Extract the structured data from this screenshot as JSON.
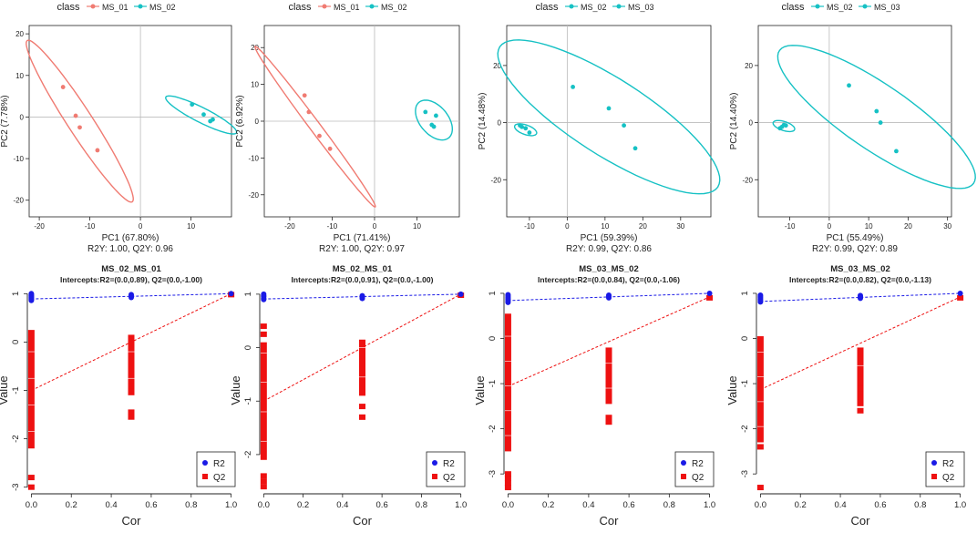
{
  "colors": {
    "ms01": "#f07b72",
    "ms03": "#16c1c4",
    "r2": "#1a1ae6",
    "q2": "#ee1111",
    "axis": "#222222",
    "ref": "#bbbbbb"
  },
  "chart_data": [
    {
      "type": "scatter",
      "panel": "pca",
      "legend_title": "class",
      "legend": [
        "MS_01",
        "MS_02"
      ],
      "xlabel": "PC1 (67.80%)",
      "ylabel": "PC2 (7.78%)",
      "stats": "R2Y: 1.00, Q2Y: 0.96",
      "xlim": [
        -22,
        18
      ],
      "ylim": [
        -24,
        22
      ],
      "xticks": [
        -20,
        -10,
        0,
        10
      ],
      "yticks": [
        -20,
        -10,
        0,
        10,
        20
      ],
      "series": [
        {
          "name": "MS_01",
          "points": [
            [
              -15.3,
              7.2
            ],
            [
              -12.8,
              0.3
            ],
            [
              -12.0,
              -2.5
            ],
            [
              -8.5,
              -8.0
            ]
          ],
          "ellipse": {
            "cx": -12,
            "cy": -1,
            "a": 22,
            "b": 2.6,
            "angle": -62
          }
        },
        {
          "name": "MS_02",
          "points": [
            [
              10.2,
              3.0
            ],
            [
              12.5,
              0.6
            ],
            [
              14.3,
              -0.6
            ],
            [
              13.8,
              -1.0
            ]
          ],
          "ellipse": {
            "cx": 12,
            "cy": 0.5,
            "a": 8.2,
            "b": 1.7,
            "angle": -32
          }
        }
      ]
    },
    {
      "type": "scatter",
      "panel": "pca",
      "legend_title": "class",
      "legend": [
        "MS_01",
        "MS_02"
      ],
      "xlabel": "PC1 (71.41%)",
      "ylabel": "PC2 (6.92%)",
      "stats": "R2Y: 1.00, Q2Y: 0.97",
      "xlim": [
        -26,
        20
      ],
      "ylim": [
        -26,
        26
      ],
      "xticks": [
        -20,
        -10,
        0,
        10
      ],
      "yticks": [
        -20,
        -10,
        0,
        10,
        20
      ],
      "series": [
        {
          "name": "MS_01",
          "points": [
            [
              -16.5,
              7.0
            ],
            [
              -15.5,
              2.5
            ],
            [
              -13.0,
              -4.0
            ],
            [
              -10.5,
              -7.5
            ]
          ],
          "ellipse": {
            "cx": -14,
            "cy": -1.5,
            "a": 26,
            "b": 1.3,
            "angle": -57
          }
        },
        {
          "name": "MS_02",
          "points": [
            [
              12.0,
              2.5
            ],
            [
              14.5,
              1.5
            ],
            [
              13.5,
              -1.0
            ],
            [
              14.0,
              -1.5
            ]
          ],
          "ellipse": {
            "cx": 14,
            "cy": 0.3,
            "a": 6,
            "b": 3.5,
            "angle": -58
          }
        }
      ]
    },
    {
      "type": "scatter",
      "panel": "pca",
      "legend_title": "class",
      "legend": [
        "MS_02",
        "MS_03"
      ],
      "xlabel": "PC1 (59.39%)",
      "ylabel": "PC2 (14.48%)",
      "stats": "R2Y: 0.99, Q2Y: 0.86",
      "xlim": [
        -16,
        38
      ],
      "ylim": [
        -33,
        34
      ],
      "xticks": [
        -10,
        0,
        10,
        20,
        30
      ],
      "yticks": [
        -20,
        0,
        20
      ],
      "series": [
        {
          "name": "MS_02",
          "points": [
            [
              -12.5,
              -1.0
            ],
            [
              -11.0,
              -2.0
            ],
            [
              -10.0,
              -3.5
            ],
            [
              -12.0,
              -1.5
            ]
          ],
          "ellipse": {
            "cx": -11,
            "cy": -2.5,
            "a": 3.2,
            "b": 1.6,
            "angle": -28
          }
        },
        {
          "name": "MS_03",
          "points": [
            [
              1.5,
              12.5
            ],
            [
              11.0,
              5.0
            ],
            [
              15.0,
              -1.0
            ],
            [
              18.0,
              -9.0
            ]
          ],
          "ellipse": {
            "cx": 11,
            "cy": 2,
            "a": 38,
            "b": 12,
            "angle": -42
          }
        }
      ]
    },
    {
      "type": "scatter",
      "panel": "pca",
      "legend_title": "class",
      "legend": [
        "MS_02",
        "MS_03"
      ],
      "xlabel": "PC1 (55.49%)",
      "ylabel": "PC2 (14.40%)",
      "stats": "R2Y: 0.99, Q2Y: 0.89",
      "xlim": [
        -18,
        31
      ],
      "ylim": [
        -33,
        34
      ],
      "xticks": [
        -10,
        0,
        10,
        20,
        30
      ],
      "yticks": [
        -20,
        0,
        20
      ],
      "series": [
        {
          "name": "MS_02",
          "points": [
            [
              -12.5,
              -2.0
            ],
            [
              -11.0,
              -1.0
            ],
            [
              -12.0,
              -1.5
            ],
            [
              -11.5,
              -0.8
            ]
          ],
          "ellipse": {
            "cx": -11.5,
            "cy": -1.2,
            "a": 3.0,
            "b": 1.5,
            "angle": -28
          }
        },
        {
          "name": "MS_03",
          "points": [
            [
              5.0,
              13.0
            ],
            [
              12.0,
              4.0
            ],
            [
              13.0,
              0.0
            ],
            [
              17.0,
              -10.0
            ]
          ],
          "ellipse": {
            "cx": 12,
            "cy": 2,
            "a": 34,
            "b": 10,
            "angle": -45
          }
        }
      ]
    },
    {
      "type": "scatter",
      "panel": "perm",
      "title": "MS_02_MS_01",
      "subtitle": "Intercepts:R2=(0.0,0.89), Q2=(0.0,-1.00)",
      "xlabel": "Cor",
      "ylabel": "Value",
      "legend": [
        "R2",
        "Q2"
      ],
      "xlim": [
        -0.02,
        1.02
      ],
      "ylim": [
        -3.1,
        1.1
      ],
      "xticks": [
        0,
        0.2,
        0.4,
        0.6,
        0.8,
        1
      ],
      "yticks": [
        -3,
        -2,
        -1,
        0,
        1
      ],
      "r2_line": [
        [
          0,
          0.89
        ],
        [
          1,
          1
        ]
      ],
      "q2_line": [
        [
          0,
          -1.0
        ],
        [
          1,
          1
        ]
      ],
      "r2_points": [
        [
          0,
          1.0
        ],
        [
          0,
          0.98
        ],
        [
          0,
          0.96
        ],
        [
          0,
          0.95
        ],
        [
          0,
          0.93
        ],
        [
          0,
          0.92
        ],
        [
          0,
          0.9
        ],
        [
          0,
          0.88
        ],
        [
          0,
          0.86
        ],
        [
          0.5,
          0.98
        ],
        [
          0.5,
          0.95
        ],
        [
          0.5,
          0.92
        ],
        [
          1,
          1.0
        ]
      ],
      "q2_bar0": [
        -2.2,
        0.25
      ],
      "q2_bar05": [
        -1.1,
        0.15
      ],
      "q2_points": [
        [
          0,
          -2.8
        ],
        [
          0,
          -3.0
        ],
        [
          0.5,
          -1.45
        ],
        [
          0.5,
          -1.55
        ],
        [
          0.5,
          -0.9
        ],
        [
          1,
          0.98
        ]
      ]
    },
    {
      "type": "scatter",
      "panel": "perm",
      "title": "MS_02_MS_01",
      "subtitle": "Intercepts:R2=(0.0,0.91), Q2=(0.0,-1.00)",
      "xlabel": "Cor",
      "ylabel": "Value",
      "legend": [
        "R2",
        "Q2"
      ],
      "xlim": [
        -0.02,
        1.02
      ],
      "ylim": [
        -2.7,
        1.1
      ],
      "xticks": [
        0,
        0.2,
        0.4,
        0.6,
        0.8,
        1
      ],
      "yticks": [
        -2,
        -1,
        0,
        1
      ],
      "r2_line": [
        [
          0,
          0.91
        ],
        [
          1,
          1
        ]
      ],
      "q2_line": [
        [
          0,
          -1.0
        ],
        [
          1,
          1
        ]
      ],
      "r2_points": [
        [
          0,
          1.0
        ],
        [
          0,
          0.97
        ],
        [
          0,
          0.95
        ],
        [
          0,
          0.92
        ],
        [
          0,
          0.9
        ],
        [
          0.5,
          0.97
        ],
        [
          0.5,
          0.94
        ],
        [
          0.5,
          0.92
        ],
        [
          1,
          1.0
        ]
      ],
      "q2_bar0": [
        -2.1,
        0.1
      ],
      "q2_bar05": [
        -0.9,
        0.15
      ],
      "q2_points": [
        [
          0,
          0.4
        ],
        [
          0,
          0.25
        ],
        [
          0,
          -2.4
        ],
        [
          0,
          -2.5
        ],
        [
          0,
          -2.6
        ],
        [
          0.5,
          -1.1
        ],
        [
          0.5,
          -1.3
        ],
        [
          1,
          0.98
        ]
      ]
    },
    {
      "type": "scatter",
      "panel": "perm",
      "title": "MS_03_MS_02",
      "subtitle": "Intercepts:R2=(0.0,0.84), Q2=(0.0,-1.06)",
      "xlabel": "Cor",
      "ylabel": "Value",
      "legend": [
        "R2",
        "Q2"
      ],
      "xlim": [
        -0.02,
        1.02
      ],
      "ylim": [
        -3.4,
        1.1
      ],
      "xticks": [
        0,
        0.2,
        0.4,
        0.6,
        0.8,
        1
      ],
      "yticks": [
        -3,
        -2,
        -1,
        0,
        1
      ],
      "r2_line": [
        [
          0,
          0.84
        ],
        [
          1,
          1
        ]
      ],
      "q2_line": [
        [
          0,
          -1.06
        ],
        [
          1,
          0.92
        ]
      ],
      "r2_points": [
        [
          0,
          0.97
        ],
        [
          0,
          0.94
        ],
        [
          0,
          0.91
        ],
        [
          0,
          0.88
        ],
        [
          0,
          0.86
        ],
        [
          0,
          0.83
        ],
        [
          0,
          0.8
        ],
        [
          0.5,
          0.96
        ],
        [
          0.5,
          0.93
        ],
        [
          0.5,
          0.9
        ],
        [
          1,
          1.0
        ]
      ],
      "q2_bar0": [
        -2.5,
        0.55
      ],
      "q2_bar05": [
        -1.45,
        -0.2
      ],
      "q2_points": [
        [
          0,
          -3.0
        ],
        [
          0,
          -3.1
        ],
        [
          0,
          -3.2
        ],
        [
          0,
          -3.3
        ],
        [
          0.5,
          -1.75
        ],
        [
          0.5,
          -1.85
        ],
        [
          1,
          0.9
        ]
      ]
    },
    {
      "type": "scatter",
      "panel": "perm",
      "title": "MS_03_MS_02",
      "subtitle": "Intercepts:R2=(0.0,0.82), Q2=(0.0,-1.13)",
      "xlabel": "Cor",
      "ylabel": "Value",
      "legend": [
        "R2",
        "Q2"
      ],
      "xlim": [
        -0.02,
        1.02
      ],
      "ylim": [
        -3.4,
        1.1
      ],
      "xticks": [
        0,
        0.2,
        0.4,
        0.6,
        0.8,
        1
      ],
      "yticks": [
        -3,
        -2,
        -1,
        0,
        1
      ],
      "r2_line": [
        [
          0,
          0.82
        ],
        [
          1,
          1
        ]
      ],
      "q2_line": [
        [
          0,
          -1.13
        ],
        [
          1,
          0.92
        ]
      ],
      "r2_points": [
        [
          0,
          0.96
        ],
        [
          0,
          0.93
        ],
        [
          0,
          0.9
        ],
        [
          0,
          0.87
        ],
        [
          0,
          0.84
        ],
        [
          0,
          0.81
        ],
        [
          0.5,
          0.95
        ],
        [
          0.5,
          0.92
        ],
        [
          0.5,
          0.89
        ],
        [
          1,
          1.0
        ]
      ],
      "q2_bar0": [
        -2.3,
        0.05
      ],
      "q2_bar05": [
        -1.5,
        -0.2
      ],
      "q2_points": [
        [
          0,
          -2.4
        ],
        [
          0,
          -3.3
        ],
        [
          0.5,
          -1.6
        ],
        [
          0.5,
          -1.1
        ],
        [
          1,
          0.9
        ]
      ]
    }
  ]
}
